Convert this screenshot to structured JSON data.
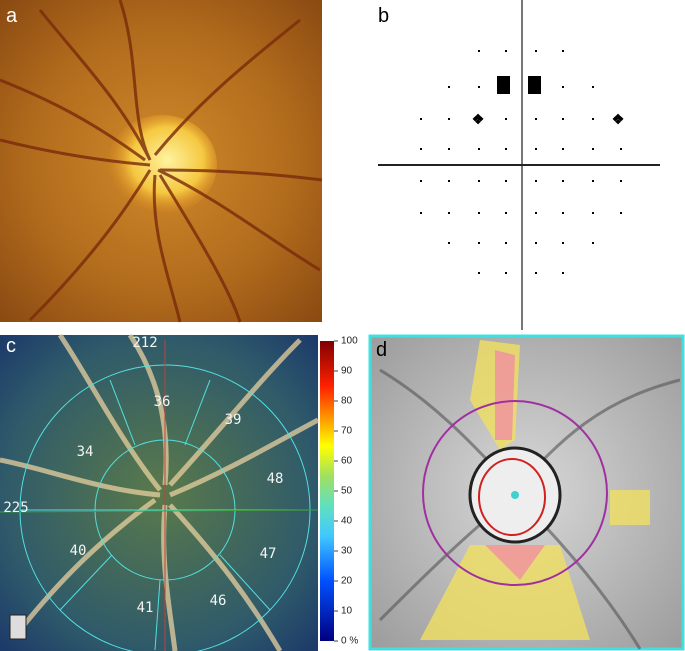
{
  "panel_labels": [
    "a",
    "b",
    "c",
    "d"
  ],
  "panel_c": {
    "axis_labels": [
      "212",
      "225"
    ],
    "sector_values": [
      "36",
      "39",
      "34",
      "48",
      "40",
      "47",
      "41",
      "46"
    ],
    "colorbar_labels": [
      "100",
      "90",
      "80",
      "70",
      "60",
      "50",
      "40",
      "30",
      "20",
      "10",
      "0 %"
    ]
  }
}
